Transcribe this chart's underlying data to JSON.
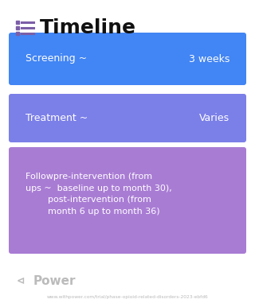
{
  "title": "Timeline",
  "background_color": "#ffffff",
  "icon_color": "#7b5ea7",
  "title_color": "#111111",
  "title_fontsize": 18,
  "rows": [
    {
      "left_text": "Screening ~",
      "right_text": "3 weeks",
      "color": "#4285f4",
      "text_color": "#ffffff",
      "multiline": false,
      "font_size": 9
    },
    {
      "left_text": "Treatment ~",
      "right_text": "Varies",
      "color": "#7b7fe8",
      "color_right": "#b07de8",
      "text_color": "#ffffff",
      "multiline": false,
      "font_size": 9
    },
    {
      "left_text": "Followpre-intervention (from\nups ~  baseline up to month 30),\n        post-intervention (from\n        month 6 up to month 36)",
      "right_text": "",
      "color": "#a97cd4",
      "text_color": "#ffffff",
      "multiline": true,
      "font_size": 8
    }
  ],
  "footer_text": "Power",
  "url_text": "www.withpower.com/trial/phase-opioid-related-disorders-2023-ebfd6",
  "footer_color": "#bbbbbb",
  "url_color": "#bbbbbb"
}
